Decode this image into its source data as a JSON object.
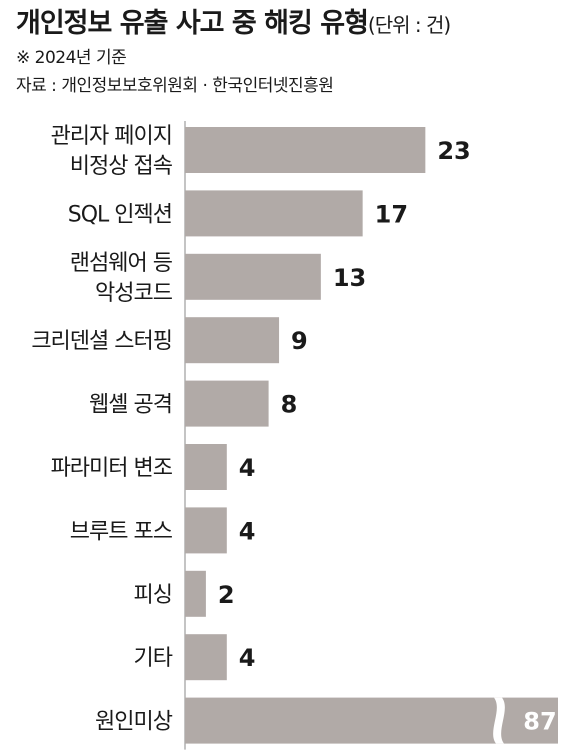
{
  "header": {
    "title": "개인정보 유출 사고 중 해킹 유형",
    "unit": "(단위 : 건)",
    "note": "※ 2024년 기준",
    "source": "자료 : 개인정보보호위원회 · 한국인터넷진흥원"
  },
  "chart_data": {
    "type": "bar",
    "orientation": "horizontal",
    "title": "개인정보 유출 사고 중 해킹 유형",
    "unit": "건",
    "categories": [
      [
        "관리자 페이지",
        "비정상 접속"
      ],
      [
        "SQL 인젝션"
      ],
      [
        "랜섬웨어 등",
        "악성코드"
      ],
      [
        "크리덴셜 스터핑"
      ],
      [
        "웹셸 공격"
      ],
      [
        "파라미터 변조"
      ],
      [
        "브루트 포스"
      ],
      [
        "피싱"
      ],
      [
        "기타"
      ],
      [
        "원인미상"
      ]
    ],
    "values": [
      23,
      17,
      13,
      9,
      8,
      4,
      4,
      2,
      4,
      87
    ],
    "broken_axis_for": [
      "원인미상"
    ],
    "bar_color": "#b1aaa7",
    "highlight_label_color": "#ffffff",
    "label_color": "#1a1a1a",
    "grid": false,
    "legend": "none"
  }
}
